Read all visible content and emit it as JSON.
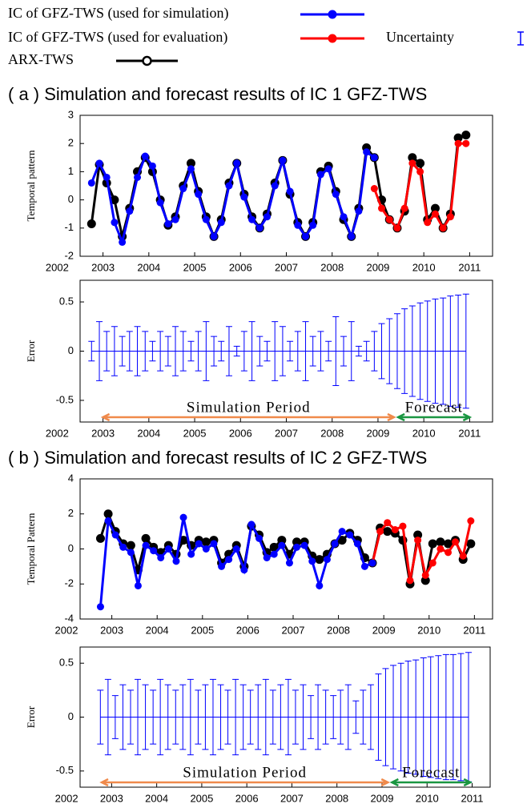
{
  "chart_data": [
    {
      "type": "line",
      "title": "( a ) Simulation and forecast results of IC 1 GFZ-TWS",
      "ylabel": "Temporal pattern",
      "x": [
        2002.75,
        2002.92,
        2003.08,
        2003.25,
        2003.42,
        2003.58,
        2003.75,
        2003.92,
        2004.08,
        2004.25,
        2004.42,
        2004.58,
        2004.75,
        2004.92,
        2005.08,
        2005.25,
        2005.42,
        2005.58,
        2005.75,
        2005.92,
        2006.08,
        2006.25,
        2006.42,
        2006.58,
        2006.75,
        2006.92,
        2007.08,
        2007.25,
        2007.42,
        2007.58,
        2007.75,
        2007.92,
        2008.08,
        2008.25,
        2008.42,
        2008.58,
        2008.75,
        2008.92,
        2009.08,
        2009.25,
        2009.42,
        2009.58,
        2009.75,
        2009.92,
        2010.08,
        2010.25,
        2010.42,
        2010.58,
        2010.75,
        2010.92
      ],
      "series": [
        {
          "name": "IC of GFZ-TWS (used for simulation)",
          "color": "#0000ff",
          "values": [
            0.6,
            1.3,
            0.8,
            -0.8,
            -1.5,
            -0.4,
            0.8,
            1.55,
            1.2,
            -0.1,
            -0.85,
            -0.7,
            0.4,
            1.1,
            0.2,
            -0.7,
            -1.3,
            -0.8,
            0.5,
            1.3,
            0.1,
            -0.7,
            -1.0,
            -0.6,
            0.5,
            1.4,
            0.3,
            -0.9,
            -1.3,
            -0.9,
            0.9,
            1.1,
            0.2,
            -0.6,
            -1.3,
            -0.4,
            1.7,
            1.5,
            null,
            null,
            null,
            null,
            null,
            null,
            null,
            null,
            null,
            null,
            null,
            null
          ]
        },
        {
          "name": "IC of GFZ-TWS (used for evaluation)",
          "color": "#ff0000",
          "values": [
            null,
            null,
            null,
            null,
            null,
            null,
            null,
            null,
            null,
            null,
            null,
            null,
            null,
            null,
            null,
            null,
            null,
            null,
            null,
            null,
            null,
            null,
            null,
            null,
            null,
            null,
            null,
            null,
            null,
            null,
            null,
            null,
            null,
            null,
            null,
            null,
            null,
            0.4,
            -0.3,
            -0.7,
            -1.0,
            -0.3,
            1.3,
            1.0,
            -0.8,
            -0.5,
            -1.0,
            -0.6,
            2.0,
            2.0
          ]
        },
        {
          "name": "ARX-TWS",
          "color": "#000000",
          "values": [
            -0.85,
            1.25,
            0.6,
            0.0,
            -1.3,
            -0.3,
            1.0,
            1.5,
            1.0,
            0.0,
            -0.9,
            -0.6,
            0.5,
            1.3,
            0.3,
            -0.6,
            -1.3,
            -0.7,
            0.6,
            1.3,
            0.2,
            -0.6,
            -1.0,
            -0.5,
            0.6,
            1.4,
            0.2,
            -0.8,
            -1.3,
            -0.8,
            1.0,
            1.2,
            0.3,
            -0.7,
            -1.3,
            -0.3,
            1.85,
            1.5,
            0.0,
            -0.7,
            -1.0,
            -0.4,
            1.5,
            1.3,
            -0.7,
            -0.3,
            -1.0,
            -0.5,
            2.2,
            2.3
          ]
        }
      ],
      "xlim": [
        2002.5,
        2011.5
      ],
      "xticks": [
        2002,
        2003,
        2004,
        2005,
        2006,
        2007,
        2008,
        2009,
        2010,
        2011
      ],
      "ylim": [
        -2,
        3
      ],
      "yticks": [
        -2,
        -1,
        0,
        1,
        2,
        3
      ]
    },
    {
      "type": "errorbar",
      "ylabel": "Error",
      "x": [
        2002.75,
        2002.92,
        2003.08,
        2003.25,
        2003.42,
        2003.58,
        2003.75,
        2003.92,
        2004.08,
        2004.25,
        2004.42,
        2004.58,
        2004.75,
        2004.92,
        2005.08,
        2005.25,
        2005.42,
        2005.58,
        2005.75,
        2005.92,
        2006.08,
        2006.25,
        2006.42,
        2006.58,
        2006.75,
        2006.92,
        2007.08,
        2007.25,
        2007.42,
        2007.58,
        2007.75,
        2007.92,
        2008.08,
        2008.25,
        2008.42,
        2008.58,
        2008.75,
        2008.92,
        2009.08,
        2009.25,
        2009.42,
        2009.58,
        2009.75,
        2009.92,
        2010.08,
        2010.25,
        2010.42,
        2010.58,
        2010.75,
        2010.92
      ],
      "series": [
        {
          "name": "Uncertainty",
          "color": "#0000ff",
          "values": [
            0,
            0,
            0,
            0,
            0,
            0,
            0,
            0,
            0,
            0,
            0,
            0,
            0,
            0,
            0,
            0,
            0,
            0,
            0,
            0,
            0,
            0,
            0,
            0,
            0,
            0,
            0,
            0,
            0,
            0,
            0,
            0,
            0,
            0,
            0,
            0,
            0,
            0,
            0,
            0,
            0,
            0,
            0,
            0,
            0,
            0,
            0,
            0,
            0,
            0
          ],
          "errors": [
            0.1,
            0.3,
            0.2,
            0.25,
            0.15,
            0.2,
            0.25,
            0.2,
            0.1,
            0.2,
            0.15,
            0.25,
            0.2,
            0.1,
            0.2,
            0.3,
            0.15,
            0.1,
            0.25,
            0.05,
            0.2,
            0.3,
            0.15,
            0.1,
            0.3,
            0.25,
            0.1,
            0.2,
            0.3,
            0.15,
            0.2,
            0.1,
            0.35,
            0.15,
            0.3,
            0.05,
            0.1,
            0.2,
            0.28,
            0.33,
            0.38,
            0.43,
            0.46,
            0.49,
            0.51,
            0.53,
            0.54,
            0.56,
            0.57,
            0.58
          ]
        }
      ],
      "annotations": [
        {
          "text": "Simulation Period",
          "x": [
            2003.0,
            2009.35
          ],
          "color": "#f08a4b"
        },
        {
          "text": "Forecast",
          "x": [
            2009.44,
            2011.0
          ],
          "color": "#1a9641"
        }
      ],
      "xlim": [
        2002.5,
        2011.5
      ],
      "xticks": [
        2002,
        2003,
        2004,
        2005,
        2006,
        2007,
        2008,
        2009,
        2010,
        2011
      ],
      "ylim": [
        -0.72,
        0.72
      ],
      "yticks": [
        -0.5,
        0,
        0.5
      ]
    },
    {
      "type": "line",
      "title": "( b ) Simulation and forecast results of IC 2 GFZ-TWS",
      "ylabel": "Temporal Pattern",
      "x": [
        2002.75,
        2002.92,
        2003.08,
        2003.25,
        2003.42,
        2003.58,
        2003.75,
        2003.92,
        2004.08,
        2004.25,
        2004.42,
        2004.58,
        2004.75,
        2004.92,
        2005.08,
        2005.25,
        2005.42,
        2005.58,
        2005.75,
        2005.92,
        2006.08,
        2006.25,
        2006.42,
        2006.58,
        2006.75,
        2006.92,
        2007.08,
        2007.25,
        2007.42,
        2007.58,
        2007.75,
        2007.92,
        2008.08,
        2008.25,
        2008.42,
        2008.58,
        2008.75,
        2008.92,
        2009.08,
        2009.25,
        2009.42,
        2009.58,
        2009.75,
        2009.92,
        2010.08,
        2010.25,
        2010.42,
        2010.58,
        2010.75,
        2010.92
      ],
      "series": [
        {
          "color": "#0000ff",
          "values": [
            -3.3,
            1.6,
            0.8,
            0.1,
            -0.2,
            -2.1,
            0.2,
            -0.1,
            -0.5,
            0.0,
            -0.7,
            1.8,
            -0.3,
            0.3,
            0.0,
            0.3,
            -1.0,
            -0.6,
            0.0,
            -1.2,
            1.4,
            0.6,
            -0.5,
            -0.3,
            0.2,
            -0.8,
            0.1,
            0.2,
            -0.7,
            -2.1,
            -0.6,
            0.3,
            1.0,
            0.8,
            0.3,
            -1.0,
            -0.8,
            null,
            null,
            null,
            null,
            null,
            null,
            null,
            null,
            null,
            null,
            null,
            null,
            null
          ]
        },
        {
          "color": "#ff0000",
          "values": [
            null,
            null,
            null,
            null,
            null,
            null,
            null,
            null,
            null,
            null,
            null,
            null,
            null,
            null,
            null,
            null,
            null,
            null,
            null,
            null,
            null,
            null,
            null,
            null,
            null,
            null,
            null,
            null,
            null,
            null,
            null,
            null,
            null,
            null,
            null,
            null,
            -0.8,
            1.0,
            1.5,
            1.1,
            1.3,
            -1.8,
            0.5,
            -1.5,
            -0.8,
            0.0,
            -0.2,
            0.4,
            -0.4,
            1.6
          ]
        },
        {
          "color": "#000000",
          "values": [
            0.6,
            2.0,
            1.0,
            0.3,
            0.2,
            -1.2,
            0.6,
            0.1,
            -0.2,
            0.2,
            -0.3,
            0.5,
            0.2,
            0.5,
            0.4,
            0.5,
            -0.8,
            -0.3,
            0.2,
            -1.0,
            1.3,
            0.8,
            -0.2,
            0.1,
            0.5,
            -0.3,
            0.4,
            0.4,
            -0.4,
            -0.6,
            -0.3,
            0.3,
            0.5,
            0.9,
            0.5,
            -0.5,
            -0.8,
            1.2,
            1.0,
            0.9,
            0.5,
            -2.0,
            0.8,
            -1.8,
            0.3,
            0.4,
            0.3,
            0.5,
            -0.6,
            0.3
          ]
        }
      ],
      "xlim": [
        2002.3,
        2011.4
      ],
      "xticks": [
        2002,
        2003,
        2004,
        2005,
        2006,
        2007,
        2008,
        2009,
        2010,
        2011
      ],
      "ylim": [
        -4,
        4
      ],
      "yticks": [
        -4,
        -2,
        0,
        2,
        4
      ]
    },
    {
      "type": "errorbar",
      "ylabel": "Error",
      "x": [
        2002.75,
        2002.92,
        2003.08,
        2003.25,
        2003.42,
        2003.58,
        2003.75,
        2003.92,
        2004.08,
        2004.25,
        2004.42,
        2004.58,
        2004.75,
        2004.92,
        2005.08,
        2005.25,
        2005.42,
        2005.58,
        2005.75,
        2005.92,
        2006.08,
        2006.25,
        2006.42,
        2006.58,
        2006.75,
        2006.92,
        2007.08,
        2007.25,
        2007.42,
        2007.58,
        2007.75,
        2007.92,
        2008.08,
        2008.25,
        2008.42,
        2008.58,
        2008.75,
        2008.92,
        2009.08,
        2009.25,
        2009.42,
        2009.58,
        2009.75,
        2009.92,
        2010.08,
        2010.25,
        2010.42,
        2010.58,
        2010.75,
        2010.92
      ],
      "series": [
        {
          "color": "#0000ff",
          "values": [
            0,
            0,
            0,
            0,
            0,
            0,
            0,
            0,
            0,
            0,
            0,
            0,
            0,
            0,
            0,
            0,
            0,
            0,
            0,
            0,
            0,
            0,
            0,
            0,
            0,
            0,
            0,
            0,
            0,
            0,
            0,
            0,
            0,
            0,
            0,
            0,
            0,
            0,
            0,
            0,
            0,
            0,
            0,
            0,
            0,
            0,
            0,
            0,
            0,
            0
          ],
          "errors": [
            0.25,
            0.35,
            0.2,
            0.3,
            0.25,
            0.35,
            0.3,
            0.25,
            0.35,
            0.3,
            0.25,
            0.3,
            0.35,
            0.25,
            0.3,
            0.35,
            0.3,
            0.25,
            0.35,
            0.3,
            0.25,
            0.3,
            0.35,
            0.25,
            0.3,
            0.35,
            0.25,
            0.3,
            0.2,
            0.3,
            0.25,
            0.2,
            0.25,
            0.3,
            0.15,
            0.25,
            0.3,
            0.4,
            0.45,
            0.48,
            0.5,
            0.52,
            0.53,
            0.55,
            0.56,
            0.57,
            0.58,
            0.58,
            0.59,
            0.6
          ]
        }
      ],
      "annotations": [
        {
          "text": "Simulation Period",
          "x": [
            2002.78,
            2009.13
          ],
          "color": "#f08a4b"
        },
        {
          "text": "Forecast",
          "x": [
            2009.22,
            2010.96
          ],
          "color": "#1a9641"
        }
      ],
      "xlim": [
        2002.3,
        2011.4
      ],
      "xticks": [
        2002,
        2003,
        2004,
        2005,
        2006,
        2007,
        2008,
        2009,
        2010,
        2011
      ],
      "ylim": [
        -0.65,
        0.65
      ],
      "yticks": [
        -0.5,
        0,
        0.5
      ]
    }
  ]
}
